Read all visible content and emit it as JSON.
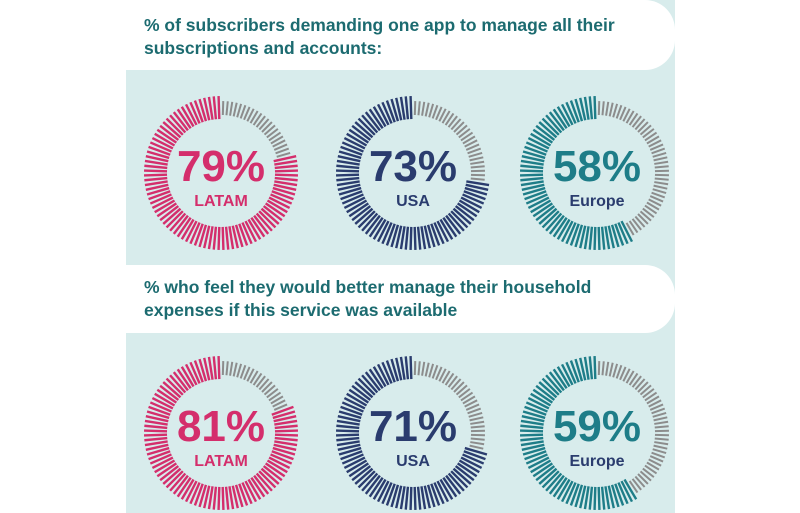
{
  "colors": {
    "latam": "#d42e6c",
    "usa": "#2a3c6e",
    "europe": "#1e7d88",
    "remainder": "#8c8c8c",
    "panel_bg": "#d8ecec",
    "title_text": "#1c6b70"
  },
  "sections": [
    {
      "title": "% of subscribers demanding one app to manage all their subscriptions and accounts:"
    },
    {
      "title": "% who feel they would better manage their household expenses if this service was available"
    }
  ],
  "chart_data": [
    {
      "type": "donut",
      "title": "% of subscribers demanding one app to manage all their subscriptions and accounts:",
      "categories": [
        "LATAM",
        "USA",
        "Europe"
      ],
      "values": [
        79,
        73,
        58
      ],
      "labels": [
        "79%",
        "73%",
        "58%"
      ],
      "unit": "%",
      "max": 100
    },
    {
      "type": "donut",
      "title": "% who feel they would better manage their household expenses if this service was available",
      "categories": [
        "LATAM",
        "USA",
        "Europe"
      ],
      "values": [
        81,
        71,
        59
      ],
      "labels": [
        "81%",
        "71%",
        "59%"
      ],
      "unit": "%",
      "max": 100
    }
  ]
}
